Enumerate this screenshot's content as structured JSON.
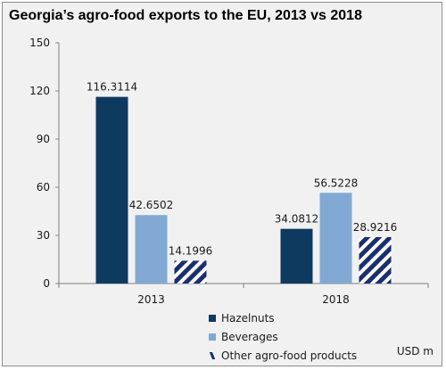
{
  "chart_data": {
    "type": "bar",
    "title": "Georgia’s agro-food exports to the EU, 2013 vs 2018",
    "categories": [
      "2013",
      "2018"
    ],
    "series": [
      {
        "name": "Hazelnuts",
        "values": [
          116.3114,
          34.0812
        ],
        "labels": [
          "116.3114",
          "34.0812"
        ],
        "color": "#0f3a5f",
        "pattern": "solid"
      },
      {
        "name": "Beverages",
        "values": [
          42.6502,
          56.5228
        ],
        "labels": [
          "42.6502",
          "56.5228"
        ],
        "color": "#82a9d3",
        "pattern": "solid"
      },
      {
        "name": "Other agro-food products",
        "values": [
          14.1996,
          28.9216
        ],
        "labels": [
          "14.1996",
          "28.9216"
        ],
        "color": "#1a2f6e",
        "pattern": "diagonal-stripes"
      }
    ],
    "ylim": [
      0,
      150
    ],
    "yticks": [
      0,
      30,
      60,
      90,
      120,
      150
    ],
    "unit": "USD m",
    "grid": false,
    "legend_position": "bottom-right"
  }
}
